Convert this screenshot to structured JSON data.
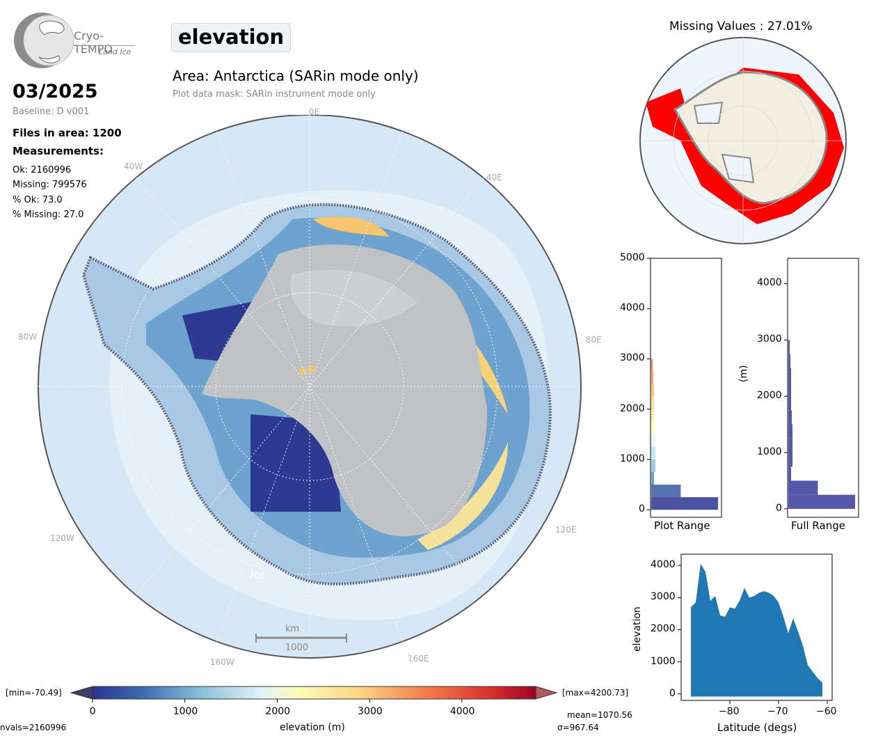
{
  "logo": {
    "name": "Cryo-TEMPO",
    "subtitle": "Land Ice"
  },
  "title": "elevation",
  "area": "Area: Antarctica (SARin mode only)",
  "mask": "Plot data mask: SARin instrument mode only",
  "date": "03/2025",
  "baseline": "Baseline: D v001",
  "files": "Files in area: 1200",
  "measurements": {
    "heading": "Measurements:",
    "ok": "Ok: 2160996",
    "missing": "Missing: 799576",
    "pct_ok": "% Ok: 73.0",
    "pct_missing": "% Missing: 27.0"
  },
  "map": {
    "grid_labels": [
      "0E",
      "40E",
      "80E",
      "120E",
      "160E",
      "160W",
      "120W",
      "80W",
      "40W",
      "70S"
    ],
    "scale_unit": "km",
    "scale_value": "1000"
  },
  "missing_panel": {
    "title": "Missing Values : 27.01%"
  },
  "hist_plot": {
    "xlabel": "Plot Range",
    "yticks": [
      "0",
      "1000",
      "2000",
      "3000",
      "4000",
      "5000"
    ]
  },
  "hist_full": {
    "xlabel": "Full Range",
    "ylabel": "(m)",
    "yticks": [
      "0",
      "1000",
      "2000",
      "3000",
      "4000"
    ]
  },
  "scatter": {
    "xlabel": "Latitude (degs)",
    "ylabel": "elevation",
    "xticks": [
      "−80",
      "−70",
      "−60"
    ],
    "yticks": [
      "0",
      "1000",
      "2000",
      "3000",
      "4000"
    ]
  },
  "colorbar": {
    "label": "elevation (m)",
    "ticks": [
      "0",
      "1000",
      "2000",
      "3000",
      "4000"
    ],
    "min": "[min=-70.49]",
    "max": "[max=4200.73]",
    "mean": "mean=1070.56",
    "sigma": "σ=967.64",
    "nvals": "nvals=2160996"
  },
  "chart_data": [
    {
      "type": "bar",
      "title": "",
      "xlabel": "Plot Range",
      "ylabel": "",
      "ylim": [
        -150,
        5000
      ],
      "orientation": "horizontal",
      "categories": [
        "0-250",
        "250-500",
        "500-750",
        "750-1000",
        "1000-1250",
        "1250-1500",
        "1500-1750",
        "1750-2000",
        "2000-2250",
        "2250-2500",
        "2500-2750",
        "2750-3000"
      ],
      "values": [
        95,
        42,
        4,
        6,
        6,
        6,
        5,
        4,
        4,
        4,
        3,
        2
      ]
    },
    {
      "type": "bar",
      "title": "",
      "xlabel": "Full Range",
      "ylabel": "(m)",
      "ylim": [
        -150,
        4450
      ],
      "orientation": "horizontal",
      "categories": [
        "0-250",
        "250-500",
        "500-750",
        "750-1000",
        "1000-1250",
        "1250-1500",
        "1500-1750",
        "1750-2000",
        "2000-2250",
        "2250-2500",
        "2500-2750",
        "2750-3000"
      ],
      "values": [
        95,
        42,
        4,
        6,
        6,
        6,
        5,
        4,
        4,
        4,
        3,
        2
      ]
    },
    {
      "type": "scatter",
      "title": "",
      "xlabel": "Latitude (degs)",
      "ylabel": "elevation",
      "xlim": [
        -90,
        -59
      ],
      "ylim": [
        -200,
        4350
      ],
      "upper_envelope": [
        [
          -88,
          2700
        ],
        [
          -87,
          2850
        ],
        [
          -86,
          4050
        ],
        [
          -85,
          3800
        ],
        [
          -84,
          2900
        ],
        [
          -83,
          3050
        ],
        [
          -82,
          2450
        ],
        [
          -81,
          2400
        ],
        [
          -80,
          2700
        ],
        [
          -79,
          2650
        ],
        [
          -78,
          2900
        ],
        [
          -77,
          3300
        ],
        [
          -76,
          3000
        ],
        [
          -75,
          3050
        ],
        [
          -74,
          3150
        ],
        [
          -73,
          3200
        ],
        [
          -72,
          3150
        ],
        [
          -71,
          3050
        ],
        [
          -70,
          2850
        ],
        [
          -69,
          2400
        ],
        [
          -68,
          1900
        ],
        [
          -67,
          2350
        ],
        [
          -66,
          1950
        ],
        [
          -65,
          1500
        ],
        [
          -64,
          900
        ],
        [
          -63,
          700
        ],
        [
          -62,
          500
        ],
        [
          -61,
          350
        ]
      ],
      "lower_bound": -80
    }
  ]
}
